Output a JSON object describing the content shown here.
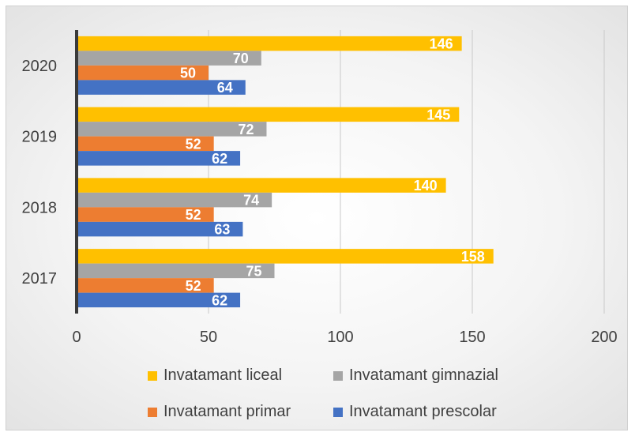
{
  "chart_data": {
    "type": "bar",
    "orientation": "horizontal",
    "categories": [
      "2017",
      "2018",
      "2019",
      "2020"
    ],
    "series": [
      {
        "name": "Invatamant prescolar",
        "color": "#4472C4",
        "values": [
          62,
          63,
          62,
          64
        ]
      },
      {
        "name": "Invatamant primar",
        "color": "#ED7D31",
        "values": [
          52,
          52,
          52,
          50
        ]
      },
      {
        "name": "Invatamant gimnazial",
        "color": "#A5A5A5",
        "values": [
          75,
          74,
          72,
          70
        ]
      },
      {
        "name": "Invatamant liceal",
        "color": "#FFC000",
        "values": [
          158,
          140,
          145,
          146
        ]
      }
    ],
    "xlim": [
      0,
      200
    ],
    "xticks": [
      "0",
      "50",
      "100",
      "150",
      "200"
    ],
    "title": "",
    "xlabel": "",
    "ylabel": "",
    "grid": "vertical",
    "legend": "bottom",
    "data_labels": true
  },
  "legend": {
    "items": [
      {
        "label": "Invatamant liceal",
        "color": "#FFC000"
      },
      {
        "label": "Invatamant gimnazial",
        "color": "#A5A5A5"
      },
      {
        "label": "Invatamant primar",
        "color": "#ED7D31"
      },
      {
        "label": "Invatamant prescolar",
        "color": "#4472C4"
      }
    ]
  }
}
